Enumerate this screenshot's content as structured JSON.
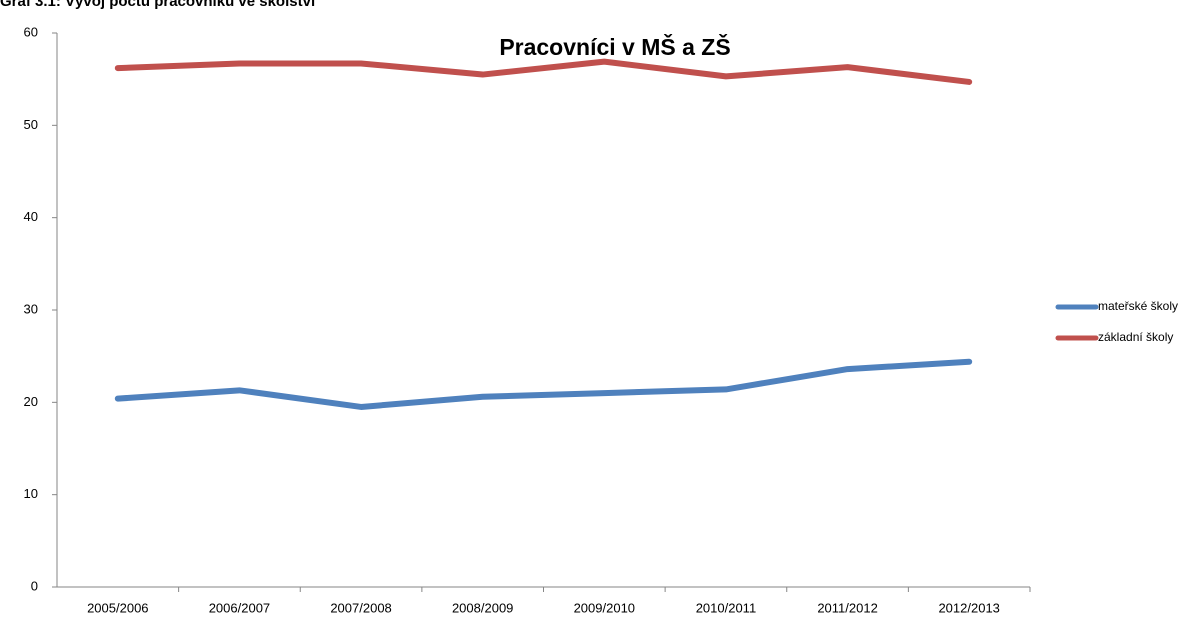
{
  "caption": "Graf 3.1: Vývoj počtu pracovníků ve školství",
  "chart_data": {
    "type": "line",
    "title": "Pracovníci v MŠ a ZŠ",
    "categories": [
      "2005/2006",
      "2006/2007",
      "2007/2008",
      "2008/2009",
      "2009/2010",
      "2010/2011",
      "2011/2012",
      "2012/2013"
    ],
    "series": [
      {
        "name": "mateřské školy",
        "color": "#4f81bd",
        "values": [
          20.4,
          21.3,
          19.5,
          20.6,
          21.0,
          21.4,
          23.6,
          24.4
        ]
      },
      {
        "name": "základní školy",
        "color": "#c0504d",
        "values": [
          56.2,
          56.7,
          56.7,
          55.5,
          56.9,
          55.3,
          56.3,
          54.7
        ]
      }
    ],
    "ylim": [
      0,
      60
    ],
    "yticks": [
      0,
      10,
      20,
      30,
      40,
      50,
      60
    ],
    "grid": false,
    "legend": "right"
  }
}
